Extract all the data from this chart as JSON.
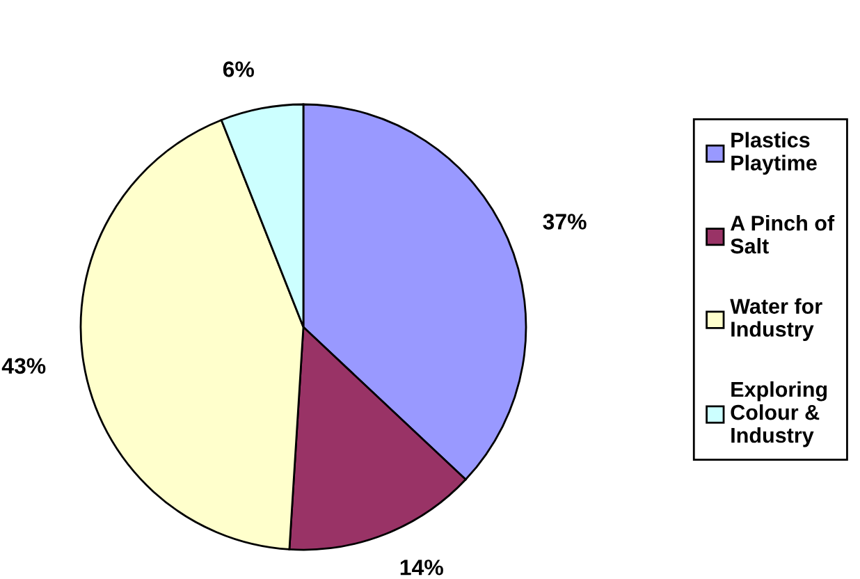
{
  "chart_data": {
    "type": "pie",
    "categories": [
      "Plastics Playtime",
      "A Pinch of Salt",
      "Water for Industry",
      "Exploring Colour & Industry"
    ],
    "values": [
      37,
      14,
      43,
      6
    ],
    "colors": [
      "#9999ff",
      "#993366",
      "#ffffcc",
      "#ccffff"
    ],
    "value_labels": [
      "37%",
      "14%",
      "43%",
      "6%"
    ],
    "legend": "right"
  }
}
